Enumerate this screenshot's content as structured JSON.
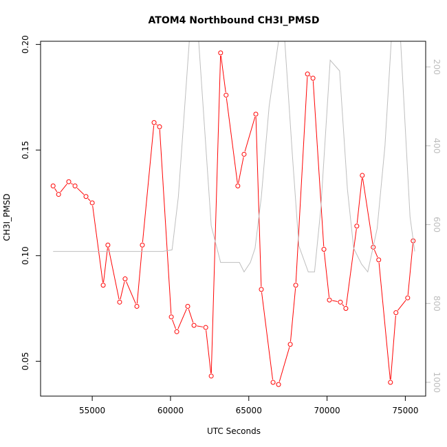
{
  "chart_data": {
    "type": "line",
    "title": "ATOM4 Northbound CH3I_PMSD",
    "xlabel": "UTC Seconds",
    "ylabel": "CH3I_PMSD",
    "xlim": [
      51700,
      76300
    ],
    "ylim": [
      0.0335,
      0.2015
    ],
    "y2lim": [
      1035,
      135
    ],
    "y2_reversed": true,
    "x_ticks": [
      55000,
      60000,
      65000,
      70000,
      75000
    ],
    "x_tick_labels": [
      "55000",
      "60000",
      "65000",
      "70000",
      "75000"
    ],
    "y_ticks": [
      0.05,
      0.1,
      0.15,
      0.2
    ],
    "y_tick_labels": [
      "0.05",
      "0.10",
      "0.15",
      "0.20"
    ],
    "y2_ticks": [
      200,
      400,
      600,
      800,
      1000
    ],
    "y2_tick_labels": [
      "200",
      "400",
      "600",
      "800",
      "1000"
    ],
    "grid": false,
    "series": [
      {
        "color": "#ff0000",
        "axis": "left",
        "marker": "open-circle",
        "x": [
          52500,
          52850,
          53500,
          53900,
          54600,
          55000,
          55700,
          56000,
          56750,
          57100,
          57850,
          58200,
          58950,
          59300,
          60050,
          60400,
          61100,
          61500,
          62250,
          62600,
          63200,
          63550,
          64300,
          64700,
          65450,
          65800,
          66550,
          66900,
          67650,
          68000,
          68750,
          69100,
          69800,
          70150,
          70850,
          71200,
          71900,
          72250,
          72950,
          73300,
          74050,
          74400,
          75150,
          75500
        ],
        "y": [
          0.133,
          0.129,
          0.135,
          0.133,
          0.128,
          0.125,
          0.086,
          0.105,
          0.078,
          0.089,
          0.076,
          0.105,
          0.163,
          0.161,
          0.071,
          0.064,
          0.076,
          0.067,
          0.066,
          0.043,
          0.196,
          0.176,
          0.133,
          0.148,
          0.167,
          0.084,
          0.04,
          0.039,
          0.058,
          0.086,
          0.186,
          0.184,
          0.103,
          0.079,
          0.078,
          0.075,
          0.114,
          0.138,
          0.104,
          0.098,
          0.04,
          0.073,
          0.08,
          0.107
        ]
      },
      {
        "color": "#bebebe",
        "axis": "right",
        "marker": "none",
        "x": [
          52500,
          55000,
          57500,
          59500,
          60100,
          60500,
          61200,
          61800,
          62600,
          63200,
          63800,
          64400,
          64700,
          65100,
          65400,
          65800,
          66300,
          66900,
          67300,
          67800,
          68200,
          68800,
          69200,
          69600,
          70200,
          70800,
          71300,
          71700,
          72200,
          72600,
          73200,
          73700,
          74100,
          74700,
          75300,
          75600
        ],
        "y": [
          668,
          668,
          668,
          668,
          664,
          530,
          135,
          135,
          603,
          696,
          696,
          696,
          720,
          696,
          660,
          530,
          300,
          135,
          135,
          432,
          654,
          720,
          720,
          560,
          183,
          210,
          510,
          660,
          700,
          720,
          610,
          400,
          135,
          135,
          580,
          668
        ]
      }
    ]
  }
}
